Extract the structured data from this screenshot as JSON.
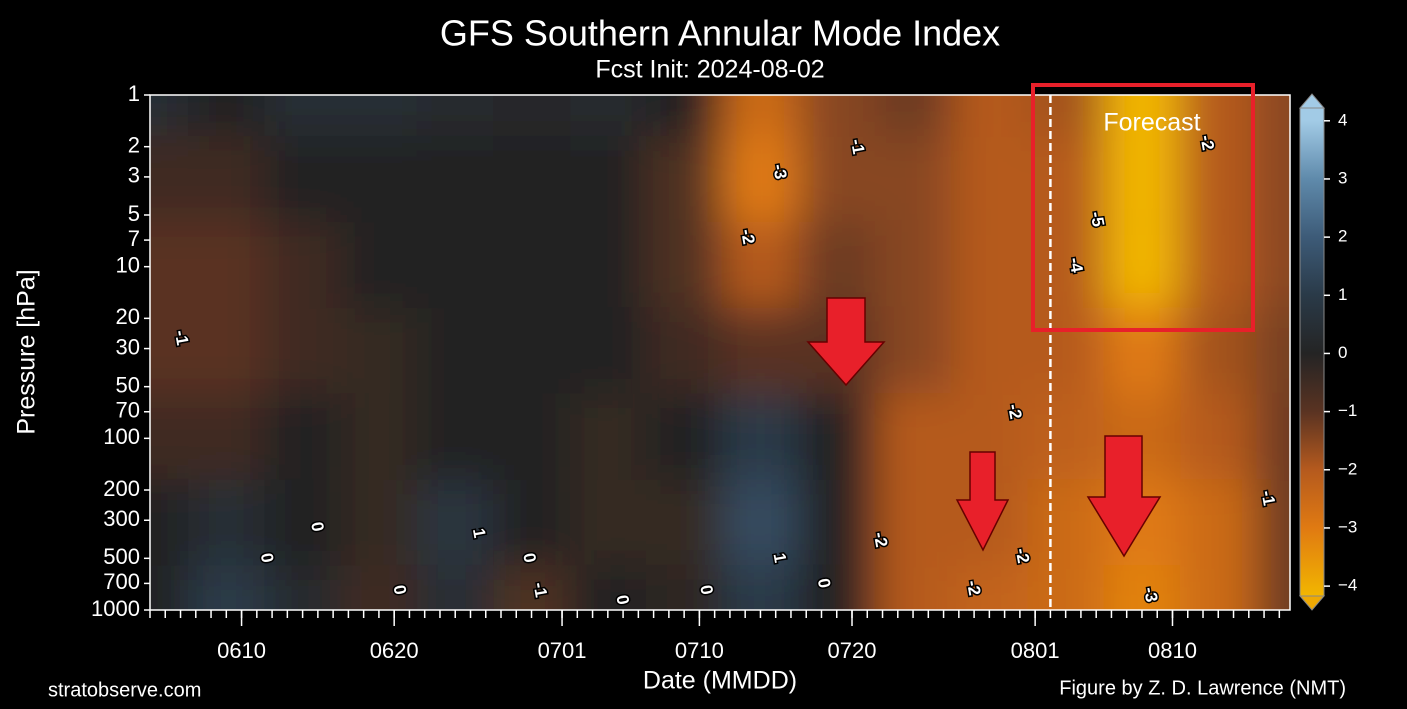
{
  "chart_data": {
    "type": "contour",
    "title": "GFS Southern Annular Mode Index",
    "subtitle": "Fcst Init: 2024-08-02",
    "x_label": "Date (MMDD)",
    "y_label": "Pressure [hPa]",
    "annotation": "Forecast",
    "source_left": "stratobserve.com",
    "source_right": "Figure by Z. D. Lawrence (NMT)",
    "xlim": [
      156,
      230.7
    ],
    "xticks": [
      {
        "value": 162,
        "label": "0610"
      },
      {
        "value": 172,
        "label": "0620"
      },
      {
        "value": 183,
        "label": "0701"
      },
      {
        "value": 192,
        "label": "0710"
      },
      {
        "value": 202,
        "label": "0720"
      },
      {
        "value": 214,
        "label": "0801"
      },
      {
        "value": 223,
        "label": "0810"
      }
    ],
    "xminor_step": 1,
    "ylim": [
      1000,
      1
    ],
    "ylog": true,
    "yticks": [
      1,
      2,
      3,
      5,
      7,
      10,
      20,
      30,
      50,
      70,
      100,
      200,
      300,
      500,
      700,
      1000
    ],
    "forecast_line": 215,
    "field": {
      "x": [
        156,
        161,
        166,
        171,
        176,
        181,
        186,
        191,
        196,
        201,
        206,
        211,
        216,
        221,
        226,
        231
      ],
      "y": [
        1,
        3,
        10,
        30,
        100,
        300,
        1000
      ],
      "z": [
        [
          0.5,
          0,
          0.5,
          0.5,
          0.3,
          0.2,
          0.3,
          0,
          -2.5,
          -1.5,
          -1.2,
          -2,
          -1.8,
          -4.5,
          -2,
          -1.5
        ],
        [
          -0.5,
          -0.5,
          0,
          0,
          0,
          0,
          0,
          -0.8,
          -3,
          -1.5,
          -1.5,
          -2,
          -2,
          -5,
          -2,
          -1.5
        ],
        [
          -1,
          -1,
          -0.5,
          0,
          0,
          0,
          0,
          -0.8,
          -2,
          -1.2,
          -1.5,
          -2,
          -2,
          -4.5,
          -2,
          -1.5
        ],
        [
          -1,
          -1,
          -0.5,
          -0.3,
          0,
          0,
          0,
          -0.5,
          -1,
          -1,
          -1.5,
          -2,
          -2,
          -3,
          -1.8,
          -1.3
        ],
        [
          -0.5,
          -0.5,
          0,
          -0.3,
          0,
          0,
          -0.3,
          0,
          1,
          0,
          -2,
          -2,
          -2.2,
          -2.5,
          -2,
          -1.2
        ],
        [
          0,
          0.5,
          0,
          -0.3,
          0.8,
          0,
          -0.3,
          -0.3,
          1.5,
          0,
          -2,
          -2,
          -2.5,
          -3,
          -2.5,
          -1.2
        ],
        [
          0,
          1,
          0.3,
          -0.5,
          0.5,
          -0.8,
          0,
          -0.2,
          1,
          0,
          -2,
          -2.3,
          -2.5,
          -3.2,
          -2.5,
          -1.2
        ]
      ]
    },
    "contour_labels": [
      {
        "x": 158,
        "y": 26,
        "value": -1
      },
      {
        "x": 197.2,
        "y": 2.8,
        "value": -3
      },
      {
        "x": 195.1,
        "y": 6.7,
        "value": -2
      },
      {
        "x": 202.3,
        "y": 2,
        "value": -1
      },
      {
        "x": 218,
        "y": 5.3,
        "value": -5
      },
      {
        "x": 216.6,
        "y": 9.8,
        "value": -4
      },
      {
        "x": 225.2,
        "y": 1.9,
        "value": -2
      },
      {
        "x": 212.6,
        "y": 70,
        "value": -2
      },
      {
        "x": 229.2,
        "y": 223,
        "value": -1
      },
      {
        "x": 203.8,
        "y": 390,
        "value": -2
      },
      {
        "x": 213.1,
        "y": 484,
        "value": -2
      },
      {
        "x": 209.9,
        "y": 745,
        "value": -2
      },
      {
        "x": 221.5,
        "y": 815,
        "value": -3
      },
      {
        "x": 163.6,
        "y": 498,
        "value": 0
      },
      {
        "x": 166.9,
        "y": 328,
        "value": 0
      },
      {
        "x": 177.5,
        "y": 357,
        "value": 1
      },
      {
        "x": 180.8,
        "y": 498,
        "value": 0
      },
      {
        "x": 181.5,
        "y": 765,
        "value": -1
      },
      {
        "x": 172.3,
        "y": 765,
        "value": 0
      },
      {
        "x": 186.9,
        "y": 875,
        "value": 0
      },
      {
        "x": 192.4,
        "y": 765,
        "value": 0
      },
      {
        "x": 197.2,
        "y": 498,
        "value": 1
      },
      {
        "x": 200.1,
        "y": 700,
        "value": 0
      }
    ],
    "colormap": [
      [
        -4.5,
        "#f2b600"
      ],
      [
        -3,
        "#e07a12"
      ],
      [
        -2,
        "#b55a1e"
      ],
      [
        -1,
        "#5a3322"
      ],
      [
        0,
        "#242424"
      ],
      [
        1,
        "#2a3a48"
      ],
      [
        2,
        "#3d5b78"
      ],
      [
        3,
        "#5f8aab"
      ],
      [
        4,
        "#a2cbe6"
      ]
    ],
    "clim": [
      -4.17,
      4.22
    ],
    "cticks": [
      4,
      3,
      2,
      1,
      0,
      {
        "value": -1,
        "label": "−1"
      },
      {
        "value": -2,
        "label": "−2"
      },
      {
        "value": -3,
        "label": "−3"
      },
      {
        "value": -4,
        "label": "−4"
      }
    ]
  }
}
